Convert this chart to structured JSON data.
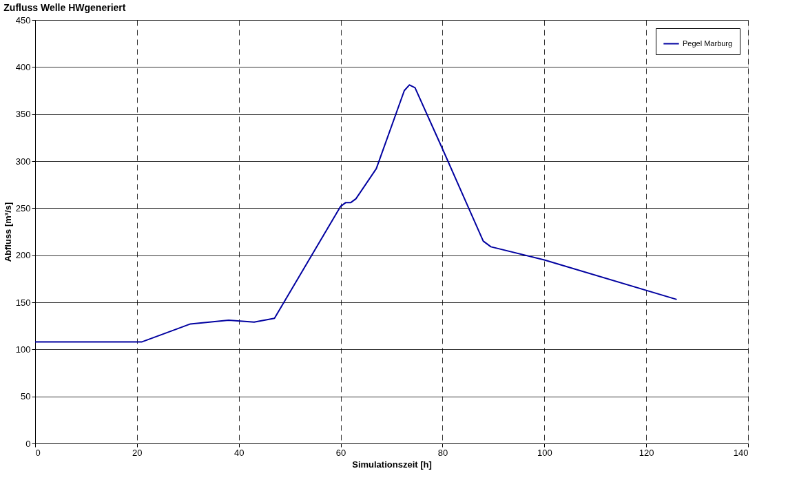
{
  "chart_data": {
    "type": "line",
    "title": "Zufluss Welle HWgeneriert",
    "xlabel": "Simulationszeit [h]",
    "ylabel": "Abfluss [m³/s]",
    "xlim": [
      0,
      140
    ],
    "xticks": [
      0,
      20,
      40,
      60,
      80,
      100,
      120,
      140
    ],
    "ylim": [
      0,
      450
    ],
    "yticks": [
      0,
      50,
      100,
      150,
      200,
      250,
      300,
      350,
      400,
      450
    ],
    "grid": true,
    "legend": "top right",
    "marker": "none",
    "line_style": "solid",
    "series": [
      {
        "name": "Pegel Marburg",
        "color": "#0000a0",
        "x": [
          0,
          21,
          30.5,
          38,
          43,
          47,
          60,
          61,
          62,
          63,
          67,
          72.5,
          73.5,
          74.6,
          80,
          88,
          89.5,
          100,
          126
        ],
        "values": [
          108,
          108,
          127,
          131,
          129,
          133,
          252,
          256,
          256,
          260,
          292,
          375,
          381,
          378,
          313,
          215,
          209,
          195,
          153
        ]
      }
    ]
  }
}
